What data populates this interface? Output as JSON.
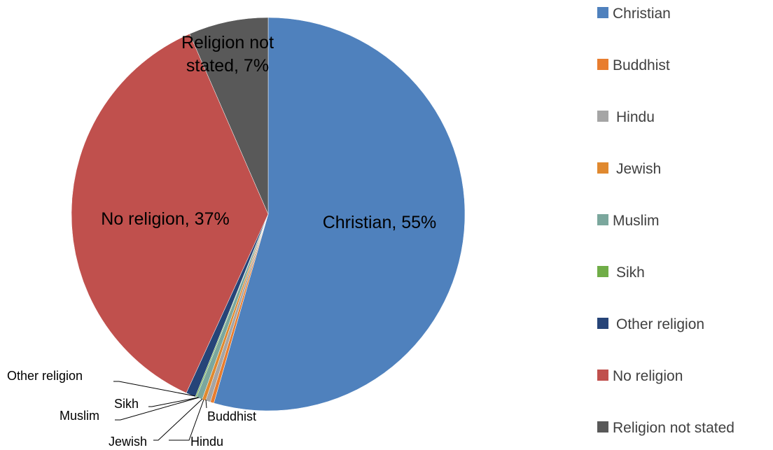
{
  "chart_data": {
    "type": "pie",
    "categories": [
      "Christian",
      "Buddhist",
      "Hindu",
      "Jewish",
      "Muslim",
      "Sikh",
      "Other religion",
      "No religion",
      "Religion not stated"
    ],
    "values": [
      55,
      0.3,
      0.4,
      0.3,
      0.5,
      0.1,
      0.8,
      37,
      6.6
    ],
    "data_labels": [
      "Christian, 55%",
      "Buddhist",
      "Hindu",
      "Jewish",
      "Muslim",
      "Sikh",
      "Other religion",
      "No religion, 37%",
      "Religion not stated, 7%"
    ],
    "colors": [
      "#4f81bd",
      "#e87d2f",
      "#a5a5a5",
      "#e0892f",
      "#7ba79d",
      "#70ad47",
      "#264478",
      "#c0504d",
      "#595959"
    ],
    "legend": {
      "placement": "right",
      "entries": [
        "Christian",
        "Buddhist",
        "Hindu",
        "Jewish",
        "Muslim",
        "Sikh",
        "Other religion",
        "No religion",
        "Religion not stated"
      ]
    },
    "start_angle_deg": 0,
    "direction": "clockwise"
  }
}
